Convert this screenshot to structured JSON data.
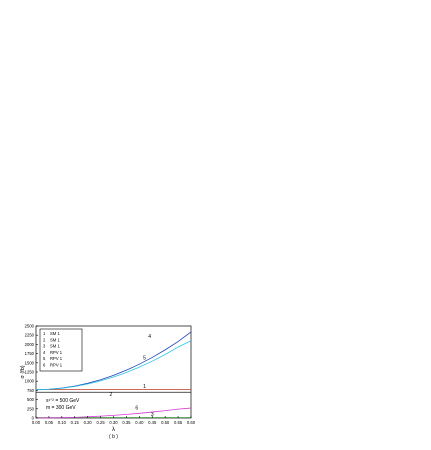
{
  "chart_data": {
    "type": "line",
    "xlabel": "λ",
    "ylabel": "σ (fb)",
    "caption": "( b )",
    "xlim": [
      0.0,
      0.6
    ],
    "ylim": [
      0,
      2500
    ],
    "x_ticks": [
      "0.00",
      "0.05",
      "0.10",
      "0.15",
      "0.20",
      "0.25",
      "0.30",
      "0.35",
      "0.40",
      "0.45",
      "0.50",
      "0.55",
      "0.60"
    ],
    "y_ticks": [
      "0",
      "250",
      "500",
      "750",
      "1000",
      "1250",
      "1500",
      "1750",
      "2000",
      "2250",
      "2500"
    ],
    "grid": false,
    "legend_position": "top-left",
    "legend": [
      {
        "num": "1",
        "label": "SM   1"
      },
      {
        "num": "2",
        "label": "SM   1"
      },
      {
        "num": "3",
        "label": "SM   1"
      },
      {
        "num": "4",
        "label": "RPV  1"
      },
      {
        "num": "5",
        "label": "RPV  1"
      },
      {
        "num": "6",
        "label": "RPV  1"
      }
    ],
    "annotations": [
      "s¹ᐟ² = 500 GeV",
      "m = 300 GeV"
    ],
    "x": [
      0.0,
      0.05,
      0.1,
      0.15,
      0.2,
      0.25,
      0.3,
      0.35,
      0.4,
      0.45,
      0.5,
      0.55,
      0.6
    ],
    "series": [
      {
        "name": "1",
        "color": "#c0392b",
        "values": [
          770,
          770,
          770,
          770,
          770,
          770,
          770,
          770,
          770,
          770,
          770,
          770,
          770
        ]
      },
      {
        "name": "2",
        "color": "#1a1a1a",
        "values": [
          700,
          700,
          700,
          700,
          700,
          700,
          700,
          700,
          700,
          700,
          700,
          700,
          700
        ]
      },
      {
        "name": "3",
        "color": "#2e8b2e",
        "values": [
          10,
          10,
          10,
          10,
          10,
          10,
          10,
          10,
          10,
          10,
          10,
          10,
          10
        ]
      },
      {
        "name": "4",
        "color": "#1f3fb5",
        "values": [
          770,
          781,
          813,
          867,
          943,
          1040,
          1159,
          1300,
          1462,
          1646,
          1851,
          2078,
          2340
        ]
      },
      {
        "name": "5",
        "color": "#27c6e6",
        "values": [
          770,
          780,
          808,
          856,
          923,
          1009,
          1114,
          1238,
          1382,
          1544,
          1726,
          1927,
          2100
        ]
      },
      {
        "name": "6",
        "color": "#d63bd6",
        "values": [
          0,
          2,
          8,
          18,
          32,
          50,
          72,
          98,
          128,
          162,
          200,
          242,
          270
        ]
      }
    ],
    "curve_labels": [
      {
        "text": "4",
        "x": 0.44,
        "y": 2180
      },
      {
        "text": "5",
        "x": 0.42,
        "y": 1590
      },
      {
        "text": "1",
        "x": 0.42,
        "y": 820
      },
      {
        "text": "2",
        "x": 0.29,
        "y": 600
      },
      {
        "text": "6",
        "x": 0.39,
        "y": 230
      },
      {
        "text": "3",
        "x": 0.45,
        "y": 60
      }
    ]
  }
}
